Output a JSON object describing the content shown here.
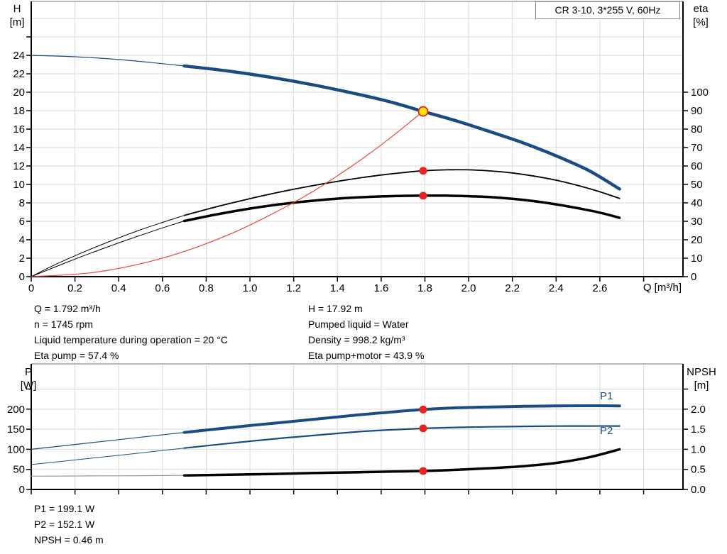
{
  "title_box": {
    "label": "CR 3-10, 3*255 V, 60Hz"
  },
  "colors": {
    "curve_blue": "#1a4c82",
    "marker_red": "#e8251f",
    "system_red": "#ee4238",
    "marker_yellow": "#ffe400",
    "curve_black": "#000000",
    "thin_grey": "#999999",
    "grid": "#d9d9d9",
    "border": "#a0a0a0",
    "axis": "#000000"
  },
  "annotations": {
    "duty_left": [
      "Q = 1.792 m³/h",
      "n = 1745 rpm",
      "Liquid temperature during operation = 20 °C",
      "Eta pump = 57.4 %"
    ],
    "duty_right": [
      "H = 17.92 m",
      "Pumped liquid = Water",
      "Density = 998.2 kg/m³",
      "Eta pump+motor = 43.9 %"
    ],
    "power_block": [
      "P1 = 199.1 W",
      "P2 = 152.1 W",
      "NPSH = 0.46 m"
    ]
  },
  "chart_data": [
    {
      "id": "qh-eta-chart",
      "type": "line",
      "title": "CR 3-10, 3*255 V, 60Hz",
      "xlabel": "Q [m³/h]",
      "x_axis": {
        "range": [
          0,
          2.98
        ],
        "tick_values": [
          0,
          0.2,
          0.4,
          0.6,
          0.8,
          1.0,
          1.2,
          1.4,
          1.6,
          1.8,
          2.0,
          2.2,
          2.4,
          2.6,
          2.8
        ],
        "tick_labels": [
          "0",
          "0.2",
          "0.4",
          "0.6",
          "0.8",
          "1.0",
          "1.2",
          "1.4",
          "1.6",
          "1.8",
          "2.0",
          "2.2",
          "2.4",
          "2.6",
          ""
        ],
        "grid": [
          0.2,
          0.4,
          0.6,
          0.8,
          1.0,
          1.2,
          1.4,
          1.6,
          1.8,
          2.0,
          2.2,
          2.4,
          2.6,
          2.8
        ]
      },
      "left_axis": {
        "title_lines": [
          "H",
          "[m]"
        ],
        "range": [
          0,
          29.85
        ],
        "tick_values": [
          0,
          2,
          4,
          6,
          8,
          10,
          12,
          14,
          16,
          18,
          20,
          22,
          24,
          26
        ],
        "tick_labels": [
          "0",
          "2",
          "4",
          "6",
          "8",
          "10",
          "12",
          "14",
          "16",
          "18",
          "20",
          "22",
          "24",
          ""
        ],
        "grid": [
          2,
          4,
          6,
          8,
          10,
          12,
          14,
          16,
          18,
          20,
          22,
          24,
          26,
          28
        ]
      },
      "right_axis": {
        "title_lines": [
          "eta",
          "[%]"
        ],
        "range": [
          0,
          149.2
        ],
        "tick_values": [
          0,
          10,
          20,
          30,
          40,
          50,
          60,
          70,
          80,
          90,
          100
        ],
        "tick_labels": [
          "0",
          "10",
          "20",
          "30",
          "40",
          "50",
          "60",
          "70",
          "80",
          "90",
          "100"
        ]
      },
      "series": [
        {
          "id": "eta-pump-curve",
          "name": "Eta pump",
          "axis": "right",
          "color_key": "curve_black",
          "width": 1.8,
          "thin_until": 0.7,
          "thin_width": 1,
          "points": [
            [
              0,
              0
            ],
            [
              0.1,
              6
            ],
            [
              0.2,
              11.3
            ],
            [
              0.3,
              16.3
            ],
            [
              0.4,
              21
            ],
            [
              0.5,
              25.4
            ],
            [
              0.6,
              29.4
            ],
            [
              0.7,
              33.2
            ],
            [
              0.85,
              38
            ],
            [
              1,
              42.3
            ],
            [
              1.15,
              46.2
            ],
            [
              1.3,
              49.6
            ],
            [
              1.45,
              52.6
            ],
            [
              1.6,
              55.1
            ],
            [
              1.7,
              56.4
            ],
            [
              1.792,
              57.4
            ],
            [
              1.9,
              57.9
            ],
            [
              2,
              57.9
            ],
            [
              2.1,
              57.3
            ],
            [
              2.2,
              56.2
            ],
            [
              2.3,
              54.5
            ],
            [
              2.4,
              52.3
            ],
            [
              2.5,
              49.4
            ],
            [
              2.6,
              46
            ],
            [
              2.69,
              42.4
            ]
          ]
        },
        {
          "id": "eta-pump-motor-curve",
          "name": "Eta pump+motor",
          "axis": "right",
          "color_key": "curve_black",
          "width": 3.5,
          "thin_until": 0.7,
          "thin_width": 1,
          "points": [
            [
              0,
              0
            ],
            [
              0.1,
              4.8
            ],
            [
              0.2,
              9.5
            ],
            [
              0.3,
              14
            ],
            [
              0.4,
              18.3
            ],
            [
              0.5,
              22.4
            ],
            [
              0.6,
              26.4
            ],
            [
              0.7,
              30.2
            ],
            [
              0.85,
              33.8
            ],
            [
              1,
              36.9
            ],
            [
              1.15,
              39.4
            ],
            [
              1.3,
              41.3
            ],
            [
              1.45,
              42.7
            ],
            [
              1.6,
              43.5
            ],
            [
              1.7,
              43.8
            ],
            [
              1.792,
              43.9
            ],
            [
              1.9,
              43.9
            ],
            [
              2,
              43.6
            ],
            [
              2.1,
              43.1
            ],
            [
              2.2,
              42.2
            ],
            [
              2.3,
              40.9
            ],
            [
              2.4,
              39.2
            ],
            [
              2.5,
              37.1
            ],
            [
              2.6,
              34.7
            ],
            [
              2.69,
              31.9
            ]
          ]
        },
        {
          "id": "system-curve",
          "name": "System resistance",
          "axis": "left",
          "color_key": "system_red",
          "width": 1.2,
          "points": [
            [
              0,
              0
            ],
            [
              0.3,
              0.5
            ],
            [
              0.6,
              2.01
            ],
            [
              0.9,
              4.52
            ],
            [
              1.2,
              8.04
            ],
            [
              1.4,
              10.94
            ],
            [
              1.6,
              14.29
            ],
            [
              1.792,
              17.92
            ]
          ]
        },
        {
          "id": "qh-curve",
          "name": "H",
          "axis": "left",
          "color_key": "curve_blue",
          "width": 4.5,
          "thin_until": 0.7,
          "thin_width": 1.2,
          "points": [
            [
              0,
              24
            ],
            [
              0.2,
              23.85
            ],
            [
              0.4,
              23.55
            ],
            [
              0.55,
              23.22
            ],
            [
              0.7,
              22.85
            ],
            [
              0.9,
              22.3
            ],
            [
              1.1,
              21.6
            ],
            [
              1.3,
              20.75
            ],
            [
              1.5,
              19.75
            ],
            [
              1.65,
              18.9
            ],
            [
              1.792,
              17.92
            ],
            [
              1.95,
              16.85
            ],
            [
              2.1,
              15.7
            ],
            [
              2.25,
              14.5
            ],
            [
              2.4,
              13.1
            ],
            [
              2.55,
              11.5
            ],
            [
              2.69,
              9.5
            ]
          ]
        }
      ],
      "markers": [
        {
          "id": "eta-pump-point",
          "style": "dot",
          "axis": "right",
          "q": 1.792,
          "v": 57.4
        },
        {
          "id": "eta-pump-motor-point",
          "style": "dot",
          "axis": "right",
          "q": 1.792,
          "v": 43.9
        },
        {
          "id": "duty-point",
          "style": "duty",
          "axis": "left",
          "q": 1.792,
          "v": 17.92
        }
      ],
      "curve_labels": []
    },
    {
      "id": "power-npsh-chart",
      "type": "line",
      "title": "",
      "xlabel": "",
      "x_axis": {
        "range": [
          0,
          2.98
        ],
        "tick_values": [
          0,
          0.2,
          0.4,
          0.6,
          0.8,
          1.0,
          1.2,
          1.4,
          1.6,
          1.8,
          2.0,
          2.2,
          2.4,
          2.6,
          2.8
        ],
        "tick_labels": [
          "",
          "",
          "",
          "",
          "",
          "",
          "",
          "",
          "",
          "",
          "",
          "",
          "",
          "",
          ""
        ],
        "grid": [
          0.2,
          0.4,
          0.6,
          0.8,
          1.0,
          1.2,
          1.4,
          1.6,
          1.8,
          2.0,
          2.2,
          2.4,
          2.6,
          2.8
        ]
      },
      "left_axis": {
        "title_lines": [
          "P",
          "[W]"
        ],
        "range": [
          0,
          312.7
        ],
        "tick_values": [
          0,
          50,
          100,
          150,
          200,
          250
        ],
        "tick_labels": [
          "0",
          "50",
          "100",
          "150",
          "200",
          ""
        ],
        "grid": [
          50,
          100,
          150,
          200,
          250
        ]
      },
      "right_axis": {
        "title_lines": [
          "NPSH",
          "[m]"
        ],
        "range": [
          0,
          3.127
        ],
        "tick_values": [
          0,
          0.5,
          1.0,
          1.5,
          2.0,
          2.5
        ],
        "tick_labels": [
          "0.0",
          "0.5",
          "1.0",
          "1.5",
          "2.0",
          ""
        ]
      },
      "series": [
        {
          "id": "p1-curve",
          "name": "P1",
          "axis": "left",
          "color_key": "curve_blue",
          "width": 4,
          "thin_until": 0.7,
          "thin_width": 1.2,
          "points": [
            [
              0,
              100
            ],
            [
              0.2,
              112
            ],
            [
              0.4,
              124
            ],
            [
              0.55,
              133
            ],
            [
              0.7,
              142
            ],
            [
              0.9,
              153.5
            ],
            [
              1.1,
              164.5
            ],
            [
              1.3,
              175
            ],
            [
              1.5,
              186
            ],
            [
              1.65,
              193
            ],
            [
              1.792,
              199.1
            ],
            [
              1.95,
              203.5
            ],
            [
              2.1,
              205.5
            ],
            [
              2.25,
              207
            ],
            [
              2.4,
              208
            ],
            [
              2.55,
              208.5
            ],
            [
              2.69,
              208
            ]
          ]
        },
        {
          "id": "p2-curve",
          "name": "P2",
          "axis": "left",
          "color_key": "curve_blue",
          "width": 2.2,
          "thin_until": 0.7,
          "thin_width": 1,
          "points": [
            [
              0,
              62
            ],
            [
              0.2,
              73.5
            ],
            [
              0.4,
              85
            ],
            [
              0.55,
              94
            ],
            [
              0.7,
              103
            ],
            [
              0.9,
              114.5
            ],
            [
              1.1,
              125.5
            ],
            [
              1.3,
              135
            ],
            [
              1.5,
              144
            ],
            [
              1.65,
              148.5
            ],
            [
              1.792,
              152.1
            ],
            [
              1.95,
              154.5
            ],
            [
              2.1,
              156
            ],
            [
              2.25,
              157
            ],
            [
              2.4,
              157.7
            ],
            [
              2.55,
              158
            ],
            [
              2.69,
              158
            ]
          ]
        },
        {
          "id": "npsh-curve",
          "name": "NPSH",
          "axis": "right",
          "color_key": "curve_black",
          "width": 3.5,
          "thin_until": 0.7,
          "thin_width": 1.2,
          "thin_color_key": "thin_grey",
          "points": [
            [
              0,
              0.33
            ],
            [
              0.2,
              0.335
            ],
            [
              0.4,
              0.34
            ],
            [
              0.55,
              0.345
            ],
            [
              0.7,
              0.35
            ],
            [
              0.9,
              0.365
            ],
            [
              1.1,
              0.385
            ],
            [
              1.3,
              0.41
            ],
            [
              1.5,
              0.43
            ],
            [
              1.65,
              0.445
            ],
            [
              1.792,
              0.46
            ],
            [
              1.95,
              0.49
            ],
            [
              2.1,
              0.53
            ],
            [
              2.25,
              0.58
            ],
            [
              2.4,
              0.66
            ],
            [
              2.55,
              0.8
            ],
            [
              2.69,
              1.0
            ]
          ]
        }
      ],
      "markers": [
        {
          "id": "p1-point",
          "style": "dot",
          "axis": "left",
          "q": 1.792,
          "v": 199.1
        },
        {
          "id": "p2-point",
          "style": "dot",
          "axis": "left",
          "q": 1.792,
          "v": 152.1
        },
        {
          "id": "npsh-point",
          "style": "dot",
          "axis": "right",
          "q": 1.792,
          "v": 0.46
        }
      ],
      "curve_labels": [
        {
          "id": "p1-label",
          "text": "P1",
          "axis": "left",
          "q": 2.63,
          "v": 224
        },
        {
          "id": "p2-label",
          "text": "P2",
          "axis": "left",
          "q": 2.63,
          "v": 138
        }
      ]
    }
  ]
}
